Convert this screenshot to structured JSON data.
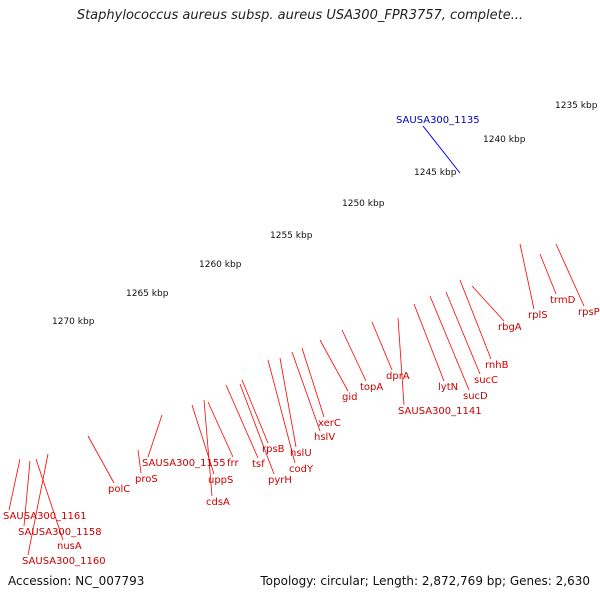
{
  "title": "Staphylococcus aureus subsp. aureus USA300_FPR3757, complete...",
  "footer": {
    "accession": "Accession: NC_007793",
    "topology": "Topology: circular; Length: 2,872,769 bp; Genes: 2,630"
  },
  "colors": {
    "backbone": "#7f7f7f",
    "gene_default": "#ff0000",
    "gene_label": "#cc0000",
    "tick": "#006600",
    "highlight_gene": "#0000ff",
    "highlight_label": "#0000cc"
  },
  "scale_labels": [
    "1235 kbp",
    "1240 kbp",
    "1245 kbp",
    "1250 kbp",
    "1255 kbp",
    "1260 kbp",
    "1265 kbp",
    "1270 kbp"
  ],
  "highlighted_gene": "SAUSA300_1135",
  "gene_labels": [
    "SAUSA300_1161",
    "SAUSA300_1158",
    "nusA",
    "SAUSA300_1160",
    "polC",
    "proS",
    "SAUSA300_1155",
    "uppS",
    "cdsA",
    "frr",
    "tsf",
    "pyrH",
    "rpsB",
    "codY",
    "hslU",
    "hslV",
    "xerC",
    "gid",
    "topA",
    "dprA",
    "SAUSA300_1141",
    "lytN",
    "sucD",
    "sucC",
    "rnhB",
    "rbgA",
    "rplS",
    "trmD",
    "rpsP"
  ]
}
